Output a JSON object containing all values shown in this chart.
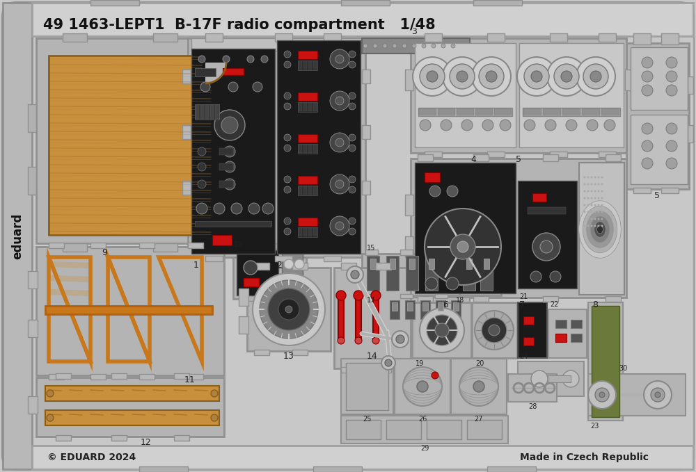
{
  "title": "49 1463-LEPT1  B-17F radio compartment   1/48",
  "bg_color": "#c8c8c8",
  "footer_left": "© EDUARD 2024",
  "footer_right": "Made in Czech Republic",
  "dark_panel": "#1a1a1a",
  "wood_color": "#c8903c",
  "orange_color": "#c8781a",
  "red_color": "#cc1111",
  "gray_panel": "#b4b4b4",
  "mid_gray": "#909090",
  "light_inner": "#d8d8d8"
}
